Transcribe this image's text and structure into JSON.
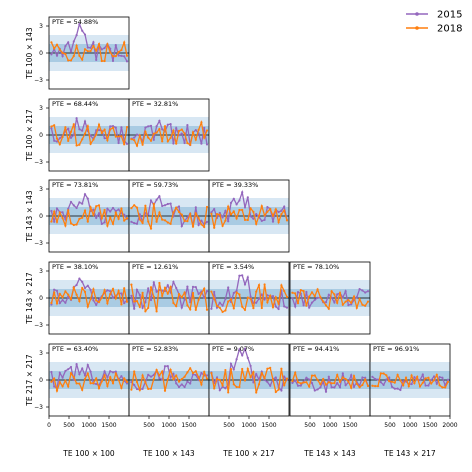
{
  "legend": {
    "placement": "top-right",
    "entries": [
      {
        "label": "2015",
        "color": "#9467bd"
      },
      {
        "label": "2018",
        "color": "#ff7f0e"
      }
    ]
  },
  "colors": {
    "series_2015": "#9467bd",
    "series_2018": "#ff7f0e",
    "band_inner": "#a9cbe3",
    "band_outer": "#d8e7f3"
  },
  "chart_data": {
    "type": "line",
    "layout": "lower-triangular corner plot (5 rows x 5 columns)",
    "row_labels": [
      "TE 100 × 143",
      "TE 100 × 217",
      "TE 143 × 143",
      "TE 143 × 217",
      "TE 217 × 217"
    ],
    "col_labels": [
      "TE 100 × 100",
      "TE 100 × 143",
      "TE 100 × 217",
      "TE 143 × 143",
      "TE 143 × 217"
    ],
    "xlim": [
      0,
      2000
    ],
    "ylim": [
      -4,
      4
    ],
    "yticks": [
      -3,
      0,
      3
    ],
    "xticks_first_col": [
      0,
      500,
      1000,
      1500
    ],
    "xticks_other_cols": [
      500,
      1000,
      1500
    ],
    "xticks_last_col": [
      500,
      1000,
      1500,
      2000
    ],
    "bands": [
      {
        "range": [
          -1,
          1
        ],
        "shade": "inner"
      },
      {
        "range": [
          -2,
          2
        ],
        "shade": "outer"
      }
    ],
    "series_names": [
      "2015",
      "2018"
    ],
    "panels": [
      {
        "row": 0,
        "col": 0,
        "pte": "PTE = 54.88%",
        "seed": 1,
        "amp": 1.0,
        "bump": 3.0
      },
      {
        "row": 1,
        "col": 0,
        "pte": "PTE = 68.44%",
        "seed": 2,
        "amp": 1.0,
        "bump": 1.5
      },
      {
        "row": 1,
        "col": 1,
        "pte": "PTE = 32.81%",
        "seed": 3,
        "amp": 1.2,
        "bump": 0.6
      },
      {
        "row": 2,
        "col": 0,
        "pte": "PTE = 73.81%",
        "seed": 4,
        "amp": 1.0,
        "bump": 2.8
      },
      {
        "row": 2,
        "col": 1,
        "pte": "PTE = 59.73%",
        "seed": 5,
        "amp": 1.2,
        "bump": 2.5
      },
      {
        "row": 2,
        "col": 2,
        "pte": "PTE = 39.33%",
        "seed": 6,
        "amp": 1.1,
        "bump": 2.6
      },
      {
        "row": 3,
        "col": 0,
        "pte": "PTE = 38.10%",
        "seed": 7,
        "amp": 1.0,
        "bump": 2.2
      },
      {
        "row": 3,
        "col": 1,
        "pte": "PTE = 12.61%",
        "seed": 8,
        "amp": 1.4,
        "bump": 2.0
      },
      {
        "row": 3,
        "col": 2,
        "pte": "PTE = 3.54%",
        "seed": 9,
        "amp": 1.3,
        "bump": 3.0
      },
      {
        "row": 3,
        "col": 3,
        "pte": "PTE = 78.10%",
        "seed": 10,
        "amp": 1.0,
        "bump": -1.0
      },
      {
        "row": 4,
        "col": 0,
        "pte": "PTE = 63.40%",
        "seed": 11,
        "amp": 1.0,
        "bump": 1.8
      },
      {
        "row": 4,
        "col": 1,
        "pte": "PTE = 52.83%",
        "seed": 12,
        "amp": 1.1,
        "bump": 1.2
      },
      {
        "row": 4,
        "col": 2,
        "pte": "PTE = 9.07%",
        "seed": 13,
        "amp": 1.2,
        "bump": 3.5
      },
      {
        "row": 4,
        "col": 3,
        "pte": "PTE = 94.41%",
        "seed": 14,
        "amp": 0.8,
        "bump": -0.8
      },
      {
        "row": 4,
        "col": 4,
        "pte": "PTE = 96.91%",
        "seed": 15,
        "amp": 0.7,
        "bump": -0.6
      }
    ]
  }
}
